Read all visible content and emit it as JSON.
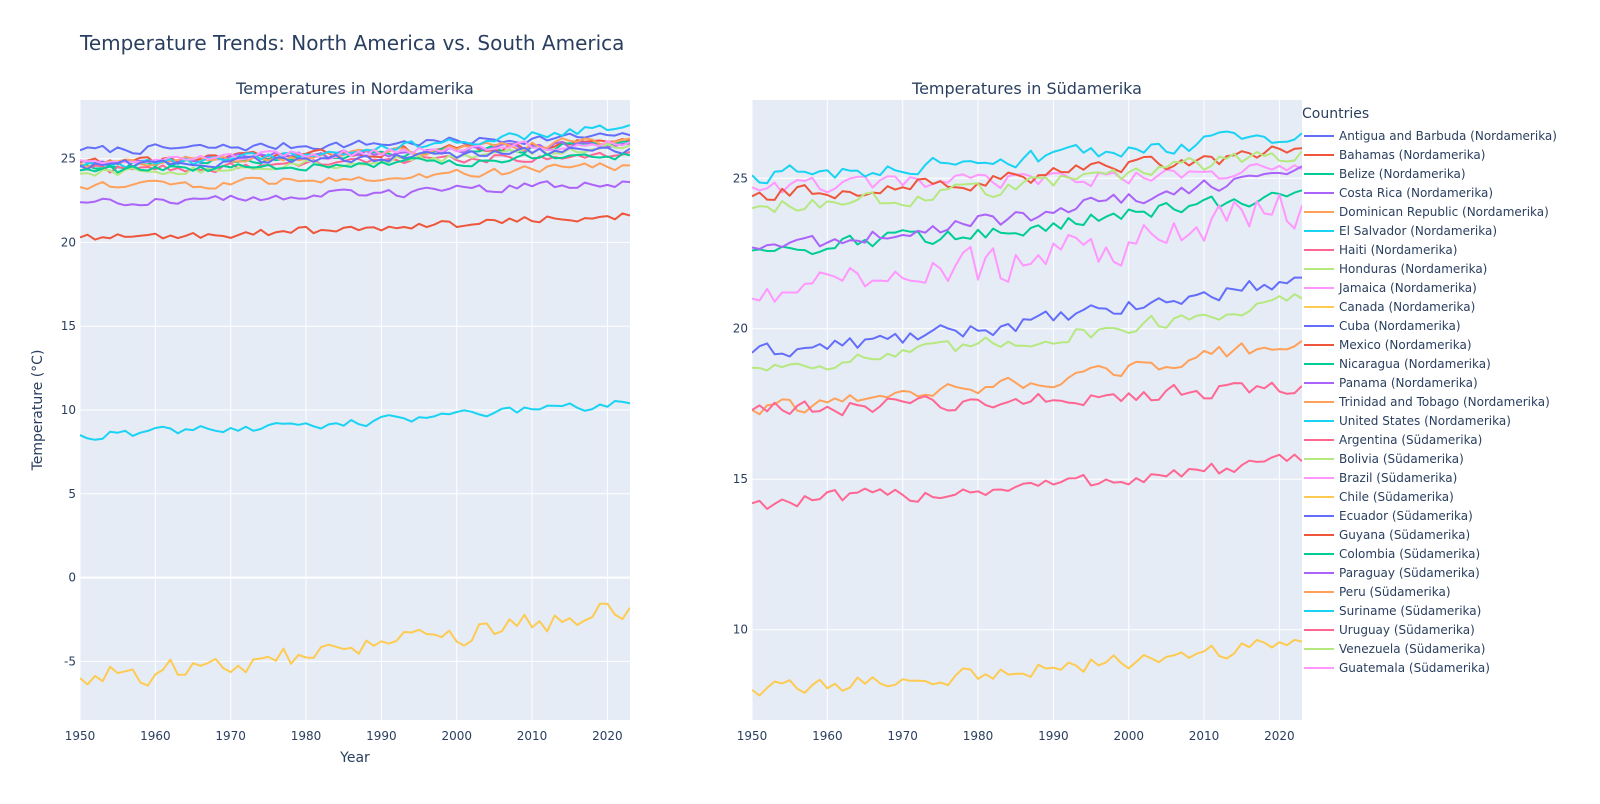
{
  "chart_data": {
    "type": "line",
    "title": "Temperature Trends: North America vs. South America",
    "legend_title": "Countries",
    "legend_position": "right",
    "grid": true,
    "x_range": [
      1950,
      2023
    ],
    "panels": [
      {
        "id": "north",
        "subtitle": "Temperatures in Nordamerika",
        "xlabel": "Year",
        "ylabel": "Temperature (°C)",
        "ylim": [
          -8.5,
          28.5
        ],
        "y_ticks": [
          -5,
          0,
          5,
          10,
          15,
          20,
          25
        ],
        "x_ticks": [
          1950,
          1960,
          1970,
          1980,
          1990,
          2000,
          2010,
          2020
        ],
        "series": [
          {
            "name": "Antigua and Barbuda (Nordamerika)",
            "color": "#636efa",
            "start": 25.5,
            "end": 26.4
          },
          {
            "name": "Bahamas (Nordamerika)",
            "color": "#EF553B",
            "start": 24.8,
            "end": 26.1
          },
          {
            "name": "Belize (Nordamerika)",
            "color": "#00cc96",
            "start": 24.6,
            "end": 26.0
          },
          {
            "name": "Costa Rica (Nordamerika)",
            "color": "#ab63fa",
            "start": 24.9,
            "end": 25.9
          },
          {
            "name": "Dominican Republic (Nordamerika)",
            "color": "#FFA15A",
            "start": 24.7,
            "end": 26.2
          },
          {
            "name": "El Salvador (Nordamerika)",
            "color": "#19d3f3",
            "start": 24.5,
            "end": 27.0
          },
          {
            "name": "Haiti (Nordamerika)",
            "color": "#FF6692",
            "start": 24.3,
            "end": 25.4
          },
          {
            "name": "Honduras (Nordamerika)",
            "color": "#B6E880",
            "start": 24.1,
            "end": 25.8
          },
          {
            "name": "Jamaica (Nordamerika)",
            "color": "#FF97FF",
            "start": 24.9,
            "end": 26.0
          },
          {
            "name": "Canada (Nordamerika)",
            "color": "#FECB52",
            "start": -6.0,
            "end": -1.8
          },
          {
            "name": "Cuba (Nordamerika)",
            "color": "#636efa",
            "start": 24.6,
            "end": 25.6
          },
          {
            "name": "Mexico (Nordamerika)",
            "color": "#EF553B",
            "start": 20.3,
            "end": 21.6
          },
          {
            "name": "Nicaragua (Nordamerika)",
            "color": "#00cc96",
            "start": 24.3,
            "end": 25.2
          },
          {
            "name": "Panama (Nordamerika)",
            "color": "#ab63fa",
            "start": 22.4,
            "end": 23.6
          },
          {
            "name": "Trinidad and Tobago (Nordamerika)",
            "color": "#FFA15A",
            "start": 23.3,
            "end": 24.6
          },
          {
            "name": "United States (Nordamerika)",
            "color": "#19d3f3",
            "start": 8.5,
            "end": 10.4
          }
        ]
      },
      {
        "id": "south",
        "subtitle": "Temperatures in Südamerika",
        "xlabel": "",
        "ylabel": "",
        "ylim": [
          7.0,
          27.6
        ],
        "y_ticks": [
          10,
          15,
          20,
          25
        ],
        "x_ticks": [
          1950,
          1960,
          1970,
          1980,
          1990,
          2000,
          2010,
          2020
        ],
        "series": [
          {
            "name": "Argentina (Südamerika)",
            "color": "#FF6692",
            "start": 14.2,
            "end": 15.6
          },
          {
            "name": "Bolivia (Südamerika)",
            "color": "#B6E880",
            "start": 18.7,
            "end": 21.0
          },
          {
            "name": "Brazil (Südamerika)",
            "color": "#FF97FF",
            "start": 24.7,
            "end": 25.3
          },
          {
            "name": "Chile (Südamerika)",
            "color": "#FECB52",
            "start": 8.0,
            "end": 9.6
          },
          {
            "name": "Ecuador (Südamerika)",
            "color": "#636efa",
            "start": 19.2,
            "end": 21.7
          },
          {
            "name": "Guyana (Südamerika)",
            "color": "#EF553B",
            "start": 24.4,
            "end": 26.0
          },
          {
            "name": "Colombia (Südamerika)",
            "color": "#00cc96",
            "start": 22.6,
            "end": 24.6
          },
          {
            "name": "Paraguay (Südamerika)",
            "color": "#ab63fa",
            "start": 22.7,
            "end": 25.4
          },
          {
            "name": "Peru (Südamerika)",
            "color": "#FFA15A",
            "start": 17.3,
            "end": 19.6
          },
          {
            "name": "Suriname (Südamerika)",
            "color": "#19d3f3",
            "start": 25.1,
            "end": 26.5
          },
          {
            "name": "Uruguay (Südamerika)",
            "color": "#FF6692",
            "start": 17.3,
            "end": 18.1
          },
          {
            "name": "Venezuela (Südamerika)",
            "color": "#B6E880",
            "start": 24.0,
            "end": 25.9
          },
          {
            "name": "Guatemala (Südamerika)",
            "color": "#FF97FF",
            "start": 21.0,
            "end": 24.1
          }
        ]
      }
    ]
  }
}
